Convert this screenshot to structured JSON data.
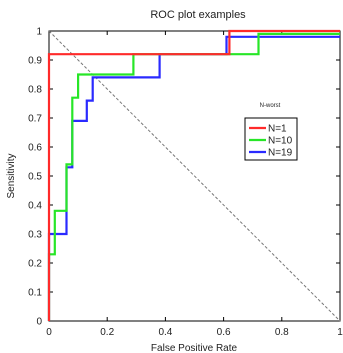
{
  "chart_data": {
    "type": "line",
    "title": "ROC plot examples",
    "xlabel": "False Positive Rate",
    "ylabel": "Sensitivity",
    "xlim": [
      0,
      1
    ],
    "ylim": [
      0,
      1
    ],
    "xticks": [
      "0",
      "0.2",
      "0.4",
      "0.6",
      "0.8",
      "1"
    ],
    "yticks": [
      "0",
      "0.1",
      "0.2",
      "0.3",
      "0.4",
      "0.5",
      "0.6",
      "0.7",
      "0.8",
      "0.9",
      "1"
    ],
    "grid": false,
    "legend": {
      "title": "N-worst",
      "position": "right"
    },
    "reference_line": {
      "from": [
        0,
        1
      ],
      "to": [
        1,
        0
      ],
      "style": "dashed"
    },
    "series": [
      {
        "name": "N=1",
        "color": "#ff2a2a",
        "x": [
          0.0,
          0.0,
          0.0,
          0.62,
          0.62,
          1.0
        ],
        "y": [
          0.0,
          0.0,
          0.92,
          0.92,
          1.0,
          1.0
        ]
      },
      {
        "name": "N=10",
        "color": "#27e627",
        "x": [
          0.0,
          0.0,
          0.02,
          0.02,
          0.04,
          0.04,
          0.06,
          0.06,
          0.08,
          0.08,
          0.1,
          0.1,
          0.29,
          0.29,
          0.45,
          0.45,
          0.62,
          0.62,
          0.72,
          0.72,
          1.0
        ],
        "y": [
          0.0,
          0.23,
          0.23,
          0.38,
          0.38,
          0.38,
          0.38,
          0.54,
          0.54,
          0.77,
          0.77,
          0.85,
          0.85,
          0.92,
          0.92,
          0.92,
          0.92,
          0.92,
          0.92,
          0.99,
          0.99
        ]
      },
      {
        "name": "N=19",
        "color": "#2a2aff",
        "x": [
          0.0,
          0.0,
          0.02,
          0.02,
          0.06,
          0.06,
          0.08,
          0.08,
          0.1,
          0.1,
          0.13,
          0.13,
          0.15,
          0.15,
          0.38,
          0.38,
          0.61,
          0.61,
          1.0
        ],
        "y": [
          0.0,
          0.3,
          0.3,
          0.3,
          0.3,
          0.53,
          0.53,
          0.69,
          0.69,
          0.69,
          0.69,
          0.76,
          0.76,
          0.84,
          0.84,
          0.92,
          0.92,
          0.98,
          0.98
        ]
      }
    ]
  }
}
